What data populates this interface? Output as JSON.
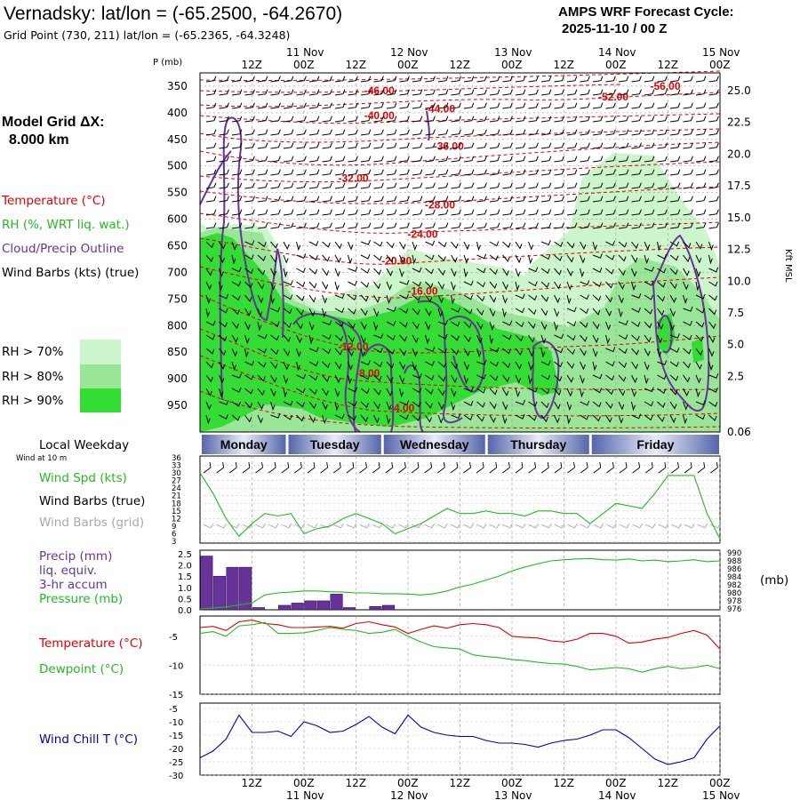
{
  "header": {
    "station_title": "Vernadsky:  lat/lon = (-65.2500, -64.2670)",
    "grid_point": "Grid Point (730, 211) lat/lon = (-65.2365, -64.3248)",
    "cycle_line1": "AMPS WRF Forecast Cycle:",
    "cycle_line2": "2025-11-10 / 00  Z"
  },
  "model_grid": {
    "label": "Model Grid ΔX:",
    "value": "8.000 km"
  },
  "time_axis": {
    "hour_labels": [
      "12Z",
      "00Z",
      "12Z",
      "00Z",
      "12Z",
      "00Z",
      "12Z",
      "00Z",
      "12Z",
      "00Z"
    ],
    "date_labels": [
      "11 Nov",
      "12 Nov",
      "13 Nov",
      "14 Nov",
      "15 Nov"
    ],
    "weekdays": [
      "Monday",
      "Tuesday",
      "Wednesday",
      "Thursday",
      "Friday"
    ],
    "weekday_title": "Local Weekday",
    "start": "2025-11-10 00Z",
    "end": "2025-11-15 00Z"
  },
  "colors": {
    "temperature": "#e00000",
    "rh": "#22bb22",
    "cloud_outline": "#663399",
    "wind_barbs": "#000000",
    "wind_barbs_grid": "#aaaaaa",
    "wind_chill": "#0000bb",
    "rh70": "#ccf5cc",
    "rh80": "#99e699",
    "rh90": "#33dd33",
    "weekday_bar": "#5566aa"
  },
  "chart_data": [
    {
      "type": "heatmap",
      "panel": "cross-section",
      "ylabel": "P (mb)",
      "y_ticks": [
        350,
        400,
        450,
        500,
        550,
        600,
        650,
        700,
        750,
        800,
        850,
        900,
        950
      ],
      "right_axis_label": "Kft MSL",
      "right_ticks": [
        "25.0",
        "22.5",
        "20.0",
        "17.5",
        "15.0",
        "12.5",
        "10.0",
        "7.5",
        "5.0",
        "2.5",
        "0.06"
      ],
      "legend": {
        "temperature": "Temperature (°C)",
        "rh": "RH (%, WRT liq. wat.)",
        "cloud": "Cloud/Precip Outline",
        "barbs": "Wind Barbs (kts) (true)",
        "rh70": "RH > 70%",
        "rh80": "RH > 80%",
        "rh90": "RH > 90%"
      },
      "isotherms": [
        {
          "label": "-56.00",
          "time_h": 108,
          "p": 350
        },
        {
          "label": "-52.00",
          "time_h": 96,
          "p": 370
        },
        {
          "label": "-46.00",
          "time_h": 42,
          "p": 358
        },
        {
          "label": "-44.00",
          "time_h": 56,
          "p": 393
        },
        {
          "label": "-40.00",
          "time_h": 42,
          "p": 405
        },
        {
          "label": "-36.00",
          "time_h": 58,
          "p": 463
        },
        {
          "label": "-32.00",
          "time_h": 36,
          "p": 523
        },
        {
          "label": "-28.00",
          "time_h": 56,
          "p": 573
        },
        {
          "label": "-24.00",
          "time_h": 52,
          "p": 628
        },
        {
          "label": "-20.00",
          "time_h": 46,
          "p": 678
        },
        {
          "label": "-16.00",
          "time_h": 52,
          "p": 735
        },
        {
          "label": "-12.00",
          "time_h": 36,
          "p": 840
        },
        {
          "label": "-8.00",
          "time_h": 40,
          "p": 890
        },
        {
          "label": "-4.00",
          "time_h": 48,
          "p": 955
        }
      ]
    },
    {
      "type": "line",
      "panel": "wind",
      "title": "Wind at 10 m",
      "labels": {
        "speed": "Wind Spd (kts)",
        "barbs_true": "Wind Barbs (true)",
        "barbs_grid": "Wind Barbs (grid)"
      },
      "y_ticks": [
        3,
        6,
        9,
        12,
        15,
        18,
        21,
        24,
        27,
        30,
        33,
        36
      ],
      "ylim": [
        3,
        36
      ],
      "x_hours": [
        0,
        3,
        6,
        9,
        12,
        15,
        18,
        21,
        24,
        27,
        30,
        33,
        36,
        39,
        42,
        45,
        48,
        51,
        54,
        57,
        60,
        63,
        66,
        69,
        72,
        75,
        78,
        81,
        84,
        87,
        90,
        93,
        96,
        99,
        102,
        105,
        108,
        111,
        114,
        117,
        120
      ],
      "series": [
        {
          "name": "Wind Spd (kts)",
          "values": [
            30,
            22,
            12,
            5,
            10,
            14,
            13,
            14,
            6,
            8,
            9,
            12,
            14,
            12,
            10,
            6,
            8,
            10,
            13,
            16,
            14,
            14,
            15,
            14,
            14,
            13,
            15,
            15,
            14,
            14,
            10,
            14,
            18,
            17,
            16,
            22,
            29,
            29,
            29,
            14,
            4
          ]
        }
      ]
    },
    {
      "type": "bar",
      "panel": "precip-pressure",
      "labels": {
        "precip": "Precip (mm)",
        "liq": "liq. equiv.",
        "accum": "3-hr accum",
        "pressure": "Pressure (mb)"
      },
      "y_ticks": [
        "0.0",
        "0.5",
        "1.0",
        "1.5",
        "2.0",
        "2.5"
      ],
      "ylim": [
        0,
        2.5
      ],
      "right_ticks": [
        976,
        978,
        980,
        982,
        984,
        986,
        988,
        990
      ],
      "right_ylim": [
        976,
        990
      ],
      "right_unit": "(mb)",
      "x_hours": [
        1.5,
        4.5,
        7.5,
        10.5,
        13.5,
        16.5,
        19.5,
        22.5,
        25.5,
        28.5,
        31.5,
        34.5,
        37.5,
        40.5,
        43.5,
        46.5
      ],
      "precip": [
        2.4,
        1.5,
        1.9,
        1.9,
        0.1,
        0.0,
        0.2,
        0.3,
        0.4,
        0.4,
        0.7,
        0.1,
        0.0,
        0.15,
        0.2,
        0.0
      ],
      "pressure_x": [
        0,
        3,
        6,
        9,
        12,
        15,
        18,
        21,
        24,
        27,
        30,
        33,
        36,
        39,
        42,
        45,
        48,
        51,
        54,
        57,
        60,
        63,
        66,
        69,
        72,
        75,
        78,
        81,
        84,
        87,
        90,
        93,
        96,
        99,
        102,
        105,
        108,
        111,
        114,
        117,
        120
      ],
      "pressure": [
        976,
        976.2,
        976.5,
        977,
        977.5,
        979.5,
        980,
        980.2,
        980.5,
        980.5,
        980.3,
        980.2,
        980,
        980,
        979.8,
        979.8,
        979.7,
        979.5,
        979.8,
        980.5,
        981.5,
        982.2,
        983.2,
        984.2,
        985.5,
        986.5,
        987.3,
        988,
        988.3,
        988.5,
        988.6,
        988.3,
        988.2,
        988.5,
        988.0,
        988.2,
        987.8,
        988.0,
        988.3,
        987.8,
        988.0
      ]
    },
    {
      "type": "line",
      "panel": "temperature-dewpoint",
      "labels": {
        "temperature": "Temperature (°C)",
        "dewpoint": "Dewpoint (°C)"
      },
      "y_ticks": [
        -15,
        -10,
        -5
      ],
      "ylim": [
        -15,
        -1.5
      ],
      "x_hours": [
        0,
        3,
        6,
        9,
        12,
        15,
        18,
        21,
        24,
        27,
        30,
        33,
        36,
        39,
        42,
        45,
        48,
        51,
        54,
        57,
        60,
        63,
        66,
        69,
        72,
        75,
        78,
        81,
        84,
        87,
        90,
        93,
        96,
        99,
        102,
        105,
        108,
        111,
        114,
        117,
        120
      ],
      "series": [
        {
          "name": "Temperature (°C)",
          "values": [
            -3.5,
            -3.3,
            -4.0,
            -2.5,
            -2.2,
            -2.8,
            -3.0,
            -3.5,
            -3.5,
            -3.4,
            -3.3,
            -3.6,
            -2.8,
            -2.5,
            -3.0,
            -3.4,
            -4.5,
            -3.8,
            -3.2,
            -3.6,
            -3.0,
            -2.8,
            -3.0,
            -3.5,
            -5.0,
            -5.2,
            -5.3,
            -5.8,
            -6.0,
            -5.5,
            -4.5,
            -4.5,
            -5.0,
            -6.2,
            -6.0,
            -5.5,
            -5.2,
            -4.5,
            -4.0,
            -4.8,
            -7.2
          ]
        },
        {
          "name": "Dewpoint (°C)",
          "values": [
            -4.5,
            -4.2,
            -5.0,
            -3.2,
            -3.0,
            -2.6,
            -4.5,
            -4.5,
            -4.4,
            -4.0,
            -3.5,
            -3.8,
            -4.0,
            -4.5,
            -4.3,
            -3.8,
            -5.0,
            -6.0,
            -6.8,
            -7.0,
            -7.2,
            -8.2,
            -8.5,
            -8.7,
            -9.0,
            -9.2,
            -9.5,
            -9.7,
            -9.8,
            -10.2,
            -10.8,
            -10.6,
            -10.4,
            -10.6,
            -11.2,
            -10.6,
            -10.2,
            -10.6,
            -10.4,
            -10.0,
            -10.6
          ]
        }
      ]
    },
    {
      "type": "line",
      "panel": "wind-chill",
      "labels": {
        "wind_chill": "Wind Chill T (°C)"
      },
      "y_ticks": [
        -30,
        -25,
        -20,
        -15,
        -10,
        -5
      ],
      "ylim": [
        -30,
        -3
      ],
      "x_hours": [
        0,
        3,
        6,
        9,
        12,
        15,
        18,
        21,
        24,
        27,
        30,
        33,
        36,
        39,
        42,
        45,
        48,
        51,
        54,
        57,
        60,
        63,
        66,
        69,
        72,
        75,
        78,
        81,
        84,
        87,
        90,
        93,
        96,
        99,
        102,
        105,
        108,
        111,
        114,
        117,
        120
      ],
      "series": [
        {
          "name": "Wind Chill T (°C)",
          "values": [
            -23.5,
            -21.0,
            -16.5,
            -7.5,
            -14.0,
            -14.0,
            -13.5,
            -15.5,
            -10.0,
            -11.5,
            -14.0,
            -13.5,
            -11.0,
            -8.0,
            -12.0,
            -14.5,
            -7.5,
            -12.0,
            -14.0,
            -15.0,
            -15.5,
            -15.5,
            -17.0,
            -18.0,
            -18.0,
            -18.5,
            -19.5,
            -18.0,
            -17.0,
            -16.5,
            -15.0,
            -13.0,
            -13.0,
            -16.0,
            -20.0,
            -24.0,
            -26.0,
            -25.0,
            -23.5,
            -16.5,
            -11.5
          ]
        }
      ]
    }
  ]
}
